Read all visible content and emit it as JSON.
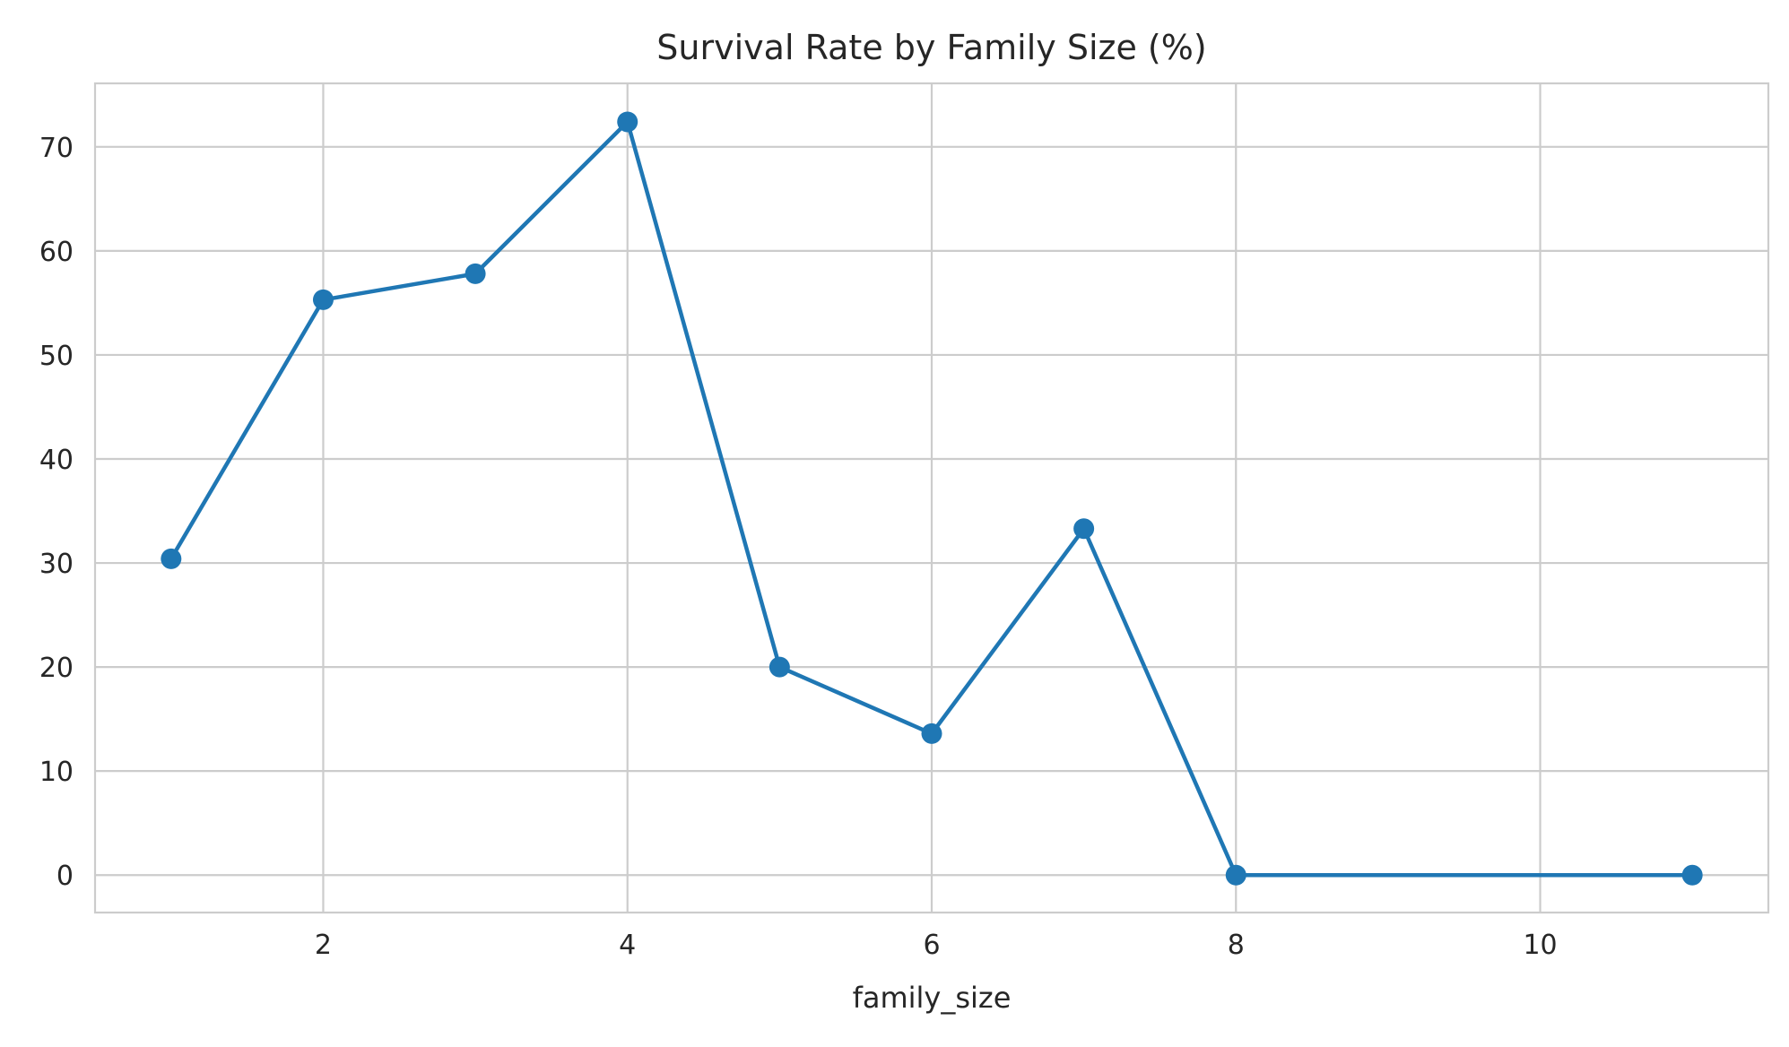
{
  "chart_data": {
    "type": "line",
    "title": "Survival Rate by Family Size (%)",
    "xlabel": "family_size",
    "ylabel": "",
    "x": [
      1,
      2,
      3,
      4,
      5,
      6,
      7,
      8,
      11
    ],
    "series": [
      {
        "name": "survival_rate",
        "values": [
          30.4,
          55.3,
          57.8,
          72.4,
          20.0,
          13.6,
          33.3,
          0.0,
          0.0
        ],
        "color": "#1f77b4",
        "marker": "circle"
      }
    ],
    "xlim": [
      0.5,
      11.5
    ],
    "ylim": [
      -3.6,
      76.1
    ],
    "xticks": [
      2,
      4,
      6,
      8,
      10
    ],
    "yticks": [
      0,
      10,
      20,
      30,
      40,
      50,
      60,
      70
    ],
    "grid": true,
    "legend": "none"
  }
}
